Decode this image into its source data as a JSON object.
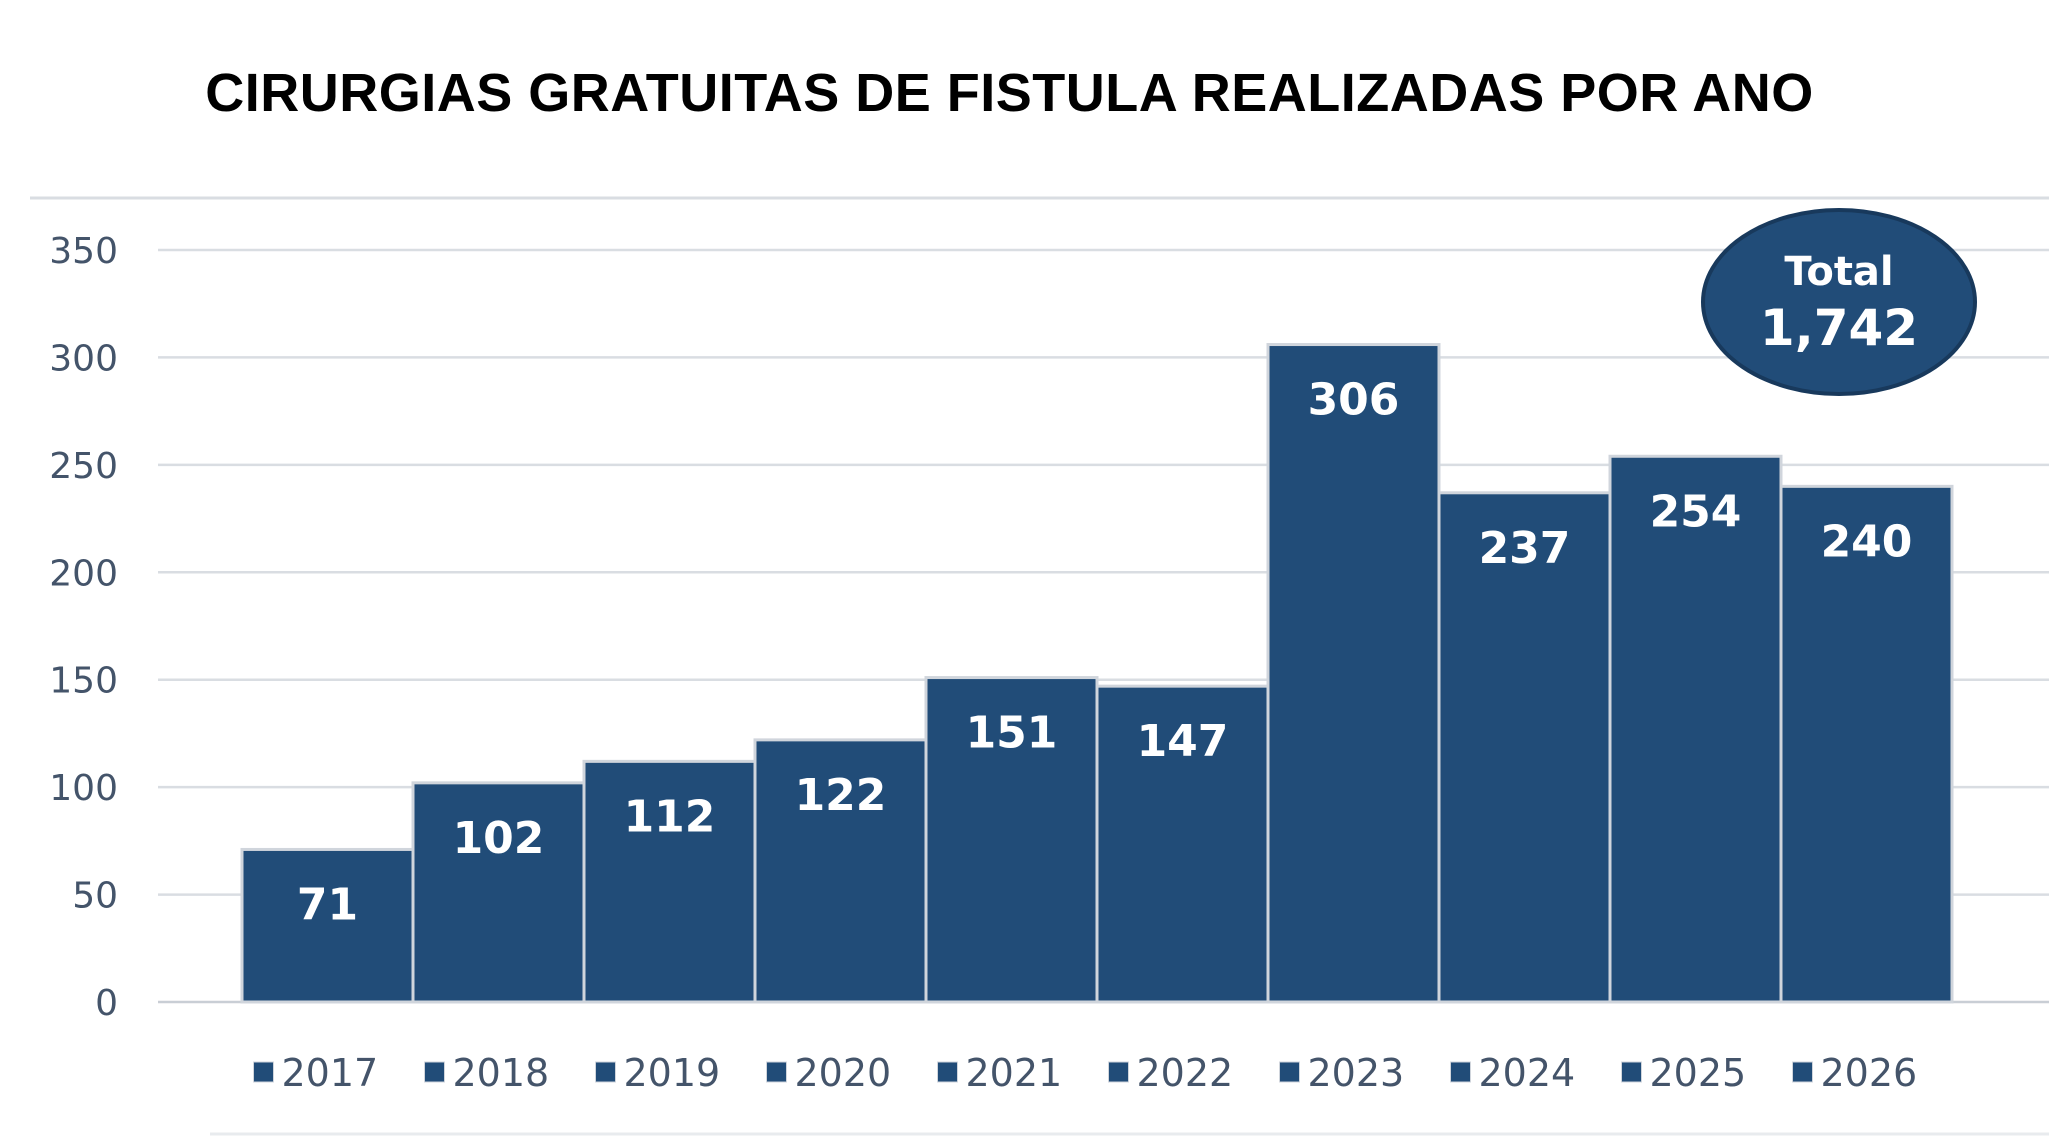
{
  "colors": {
    "bar": "#214c78",
    "bar_border": "#d0d5dc",
    "grid": "#d9dde2",
    "axis_text": "#44546a",
    "badge_fill": "#214c78",
    "badge_border": "#18395c"
  },
  "chart_data": {
    "type": "bar",
    "title": "CIRURGIAS GRATUITAS DE FISTULA REALIZADAS POR ANO",
    "xlabel": "",
    "ylabel": "",
    "categories": [
      "2017",
      "2018",
      "2019",
      "2020",
      "2021",
      "2022",
      "2023",
      "2024",
      "2025",
      "2026"
    ],
    "values": [
      71,
      102,
      112,
      122,
      151,
      147,
      306,
      237,
      254,
      240
    ],
    "data_labels": [
      "71",
      "102",
      "112",
      "122",
      "151",
      "147",
      "306",
      "237",
      "254",
      "240"
    ],
    "ylim": [
      0,
      350
    ],
    "yticks": [
      "0",
      "50",
      "100",
      "150",
      "200",
      "250",
      "300",
      "350"
    ],
    "grid": true,
    "legend": "bottom",
    "legend_entries": [
      "2017",
      "2018",
      "2019",
      "2020",
      "2021",
      "2022",
      "2023",
      "2024",
      "2025",
      "2026"
    ],
    "annotation": {
      "label": "Total",
      "value": "1,742",
      "placement": "top-right"
    }
  }
}
